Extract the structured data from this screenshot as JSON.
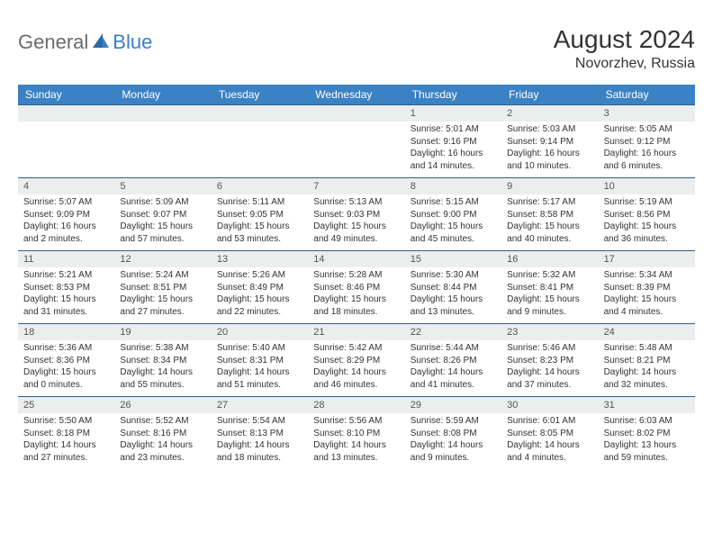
{
  "logo": {
    "text1": "General",
    "text2": "Blue"
  },
  "title": "August 2024",
  "location": "Novorzhev, Russia",
  "colors": {
    "header_bg": "#3b82c4",
    "header_text": "#ffffff",
    "daynum_bg": "#eceded",
    "row_border": "#2f5f8a",
    "logo_gray": "#6b6b6b",
    "logo_blue": "#3b7fc4",
    "body_text": "#333333"
  },
  "day_names": [
    "Sunday",
    "Monday",
    "Tuesday",
    "Wednesday",
    "Thursday",
    "Friday",
    "Saturday"
  ],
  "weeks": [
    [
      {
        "n": "",
        "sr": "",
        "ss": "",
        "dl": ""
      },
      {
        "n": "",
        "sr": "",
        "ss": "",
        "dl": ""
      },
      {
        "n": "",
        "sr": "",
        "ss": "",
        "dl": ""
      },
      {
        "n": "",
        "sr": "",
        "ss": "",
        "dl": ""
      },
      {
        "n": "1",
        "sr": "5:01 AM",
        "ss": "9:16 PM",
        "dl": "16 hours and 14 minutes."
      },
      {
        "n": "2",
        "sr": "5:03 AM",
        "ss": "9:14 PM",
        "dl": "16 hours and 10 minutes."
      },
      {
        "n": "3",
        "sr": "5:05 AM",
        "ss": "9:12 PM",
        "dl": "16 hours and 6 minutes."
      }
    ],
    [
      {
        "n": "4",
        "sr": "5:07 AM",
        "ss": "9:09 PM",
        "dl": "16 hours and 2 minutes."
      },
      {
        "n": "5",
        "sr": "5:09 AM",
        "ss": "9:07 PM",
        "dl": "15 hours and 57 minutes."
      },
      {
        "n": "6",
        "sr": "5:11 AM",
        "ss": "9:05 PM",
        "dl": "15 hours and 53 minutes."
      },
      {
        "n": "7",
        "sr": "5:13 AM",
        "ss": "9:03 PM",
        "dl": "15 hours and 49 minutes."
      },
      {
        "n": "8",
        "sr": "5:15 AM",
        "ss": "9:00 PM",
        "dl": "15 hours and 45 minutes."
      },
      {
        "n": "9",
        "sr": "5:17 AM",
        "ss": "8:58 PM",
        "dl": "15 hours and 40 minutes."
      },
      {
        "n": "10",
        "sr": "5:19 AM",
        "ss": "8:56 PM",
        "dl": "15 hours and 36 minutes."
      }
    ],
    [
      {
        "n": "11",
        "sr": "5:21 AM",
        "ss": "8:53 PM",
        "dl": "15 hours and 31 minutes."
      },
      {
        "n": "12",
        "sr": "5:24 AM",
        "ss": "8:51 PM",
        "dl": "15 hours and 27 minutes."
      },
      {
        "n": "13",
        "sr": "5:26 AM",
        "ss": "8:49 PM",
        "dl": "15 hours and 22 minutes."
      },
      {
        "n": "14",
        "sr": "5:28 AM",
        "ss": "8:46 PM",
        "dl": "15 hours and 18 minutes."
      },
      {
        "n": "15",
        "sr": "5:30 AM",
        "ss": "8:44 PM",
        "dl": "15 hours and 13 minutes."
      },
      {
        "n": "16",
        "sr": "5:32 AM",
        "ss": "8:41 PM",
        "dl": "15 hours and 9 minutes."
      },
      {
        "n": "17",
        "sr": "5:34 AM",
        "ss": "8:39 PM",
        "dl": "15 hours and 4 minutes."
      }
    ],
    [
      {
        "n": "18",
        "sr": "5:36 AM",
        "ss": "8:36 PM",
        "dl": "15 hours and 0 minutes."
      },
      {
        "n": "19",
        "sr": "5:38 AM",
        "ss": "8:34 PM",
        "dl": "14 hours and 55 minutes."
      },
      {
        "n": "20",
        "sr": "5:40 AM",
        "ss": "8:31 PM",
        "dl": "14 hours and 51 minutes."
      },
      {
        "n": "21",
        "sr": "5:42 AM",
        "ss": "8:29 PM",
        "dl": "14 hours and 46 minutes."
      },
      {
        "n": "22",
        "sr": "5:44 AM",
        "ss": "8:26 PM",
        "dl": "14 hours and 41 minutes."
      },
      {
        "n": "23",
        "sr": "5:46 AM",
        "ss": "8:23 PM",
        "dl": "14 hours and 37 minutes."
      },
      {
        "n": "24",
        "sr": "5:48 AM",
        "ss": "8:21 PM",
        "dl": "14 hours and 32 minutes."
      }
    ],
    [
      {
        "n": "25",
        "sr": "5:50 AM",
        "ss": "8:18 PM",
        "dl": "14 hours and 27 minutes."
      },
      {
        "n": "26",
        "sr": "5:52 AM",
        "ss": "8:16 PM",
        "dl": "14 hours and 23 minutes."
      },
      {
        "n": "27",
        "sr": "5:54 AM",
        "ss": "8:13 PM",
        "dl": "14 hours and 18 minutes."
      },
      {
        "n": "28",
        "sr": "5:56 AM",
        "ss": "8:10 PM",
        "dl": "14 hours and 13 minutes."
      },
      {
        "n": "29",
        "sr": "5:59 AM",
        "ss": "8:08 PM",
        "dl": "14 hours and 9 minutes."
      },
      {
        "n": "30",
        "sr": "6:01 AM",
        "ss": "8:05 PM",
        "dl": "14 hours and 4 minutes."
      },
      {
        "n": "31",
        "sr": "6:03 AM",
        "ss": "8:02 PM",
        "dl": "13 hours and 59 minutes."
      }
    ]
  ],
  "labels": {
    "sunrise": "Sunrise: ",
    "sunset": "Sunset: ",
    "daylight": "Daylight: "
  }
}
